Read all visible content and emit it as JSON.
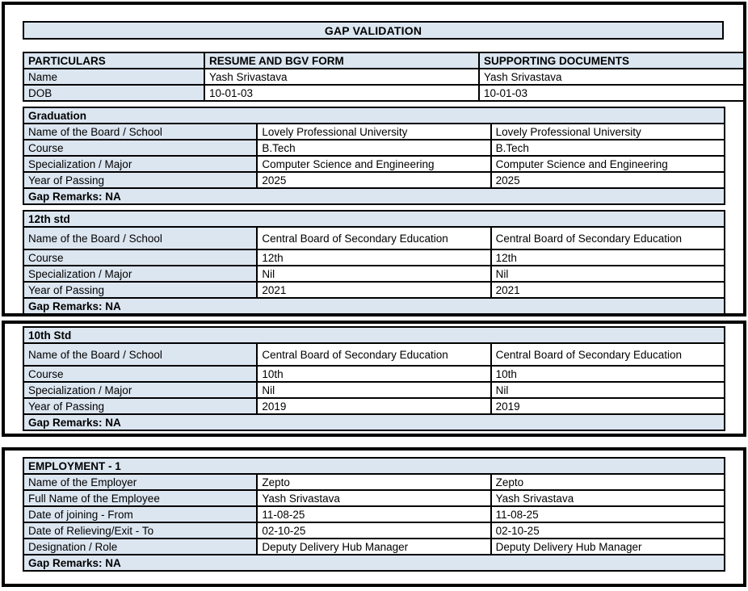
{
  "title_bar": {
    "text": "GAP VALIDATION"
  },
  "colors": {
    "accent_bg": "#dce6f1",
    "border": "#000000",
    "text": "#000000"
  },
  "particulars_table": {
    "headers": [
      "PARTICULARS",
      "RESUME AND BGV FORM",
      "SUPPORTING DOCUMENTS"
    ],
    "rows": [
      {
        "label": "Name",
        "resume": "Yash Srivastava",
        "supporting": "Yash Srivastava"
      },
      {
        "label": "DOB",
        "resume": "10-01-03",
        "supporting": "10-01-03"
      }
    ]
  },
  "sections": [
    {
      "title": "Graduation",
      "rows": [
        {
          "label": "Name of the Board / School",
          "resume": "Lovely Professional University",
          "supporting": "Lovely Professional University"
        },
        {
          "label": "Course",
          "resume": "B.Tech",
          "supporting": "B.Tech"
        },
        {
          "label": "Specialization / Major",
          "resume": "Computer Science and Engineering",
          "supporting": "Computer Science and Engineering"
        },
        {
          "label": "Year of Passing",
          "resume": "2025",
          "supporting": "2025"
        }
      ],
      "gap_remarks": "Gap Remarks: NA"
    },
    {
      "title": "12th std",
      "rows": [
        {
          "label": "Name of the Board / School",
          "resume": "Central Board of Secondary Education",
          "supporting": "Central Board of Secondary Education"
        },
        {
          "label": "Course",
          "resume": "12th",
          "supporting": "12th"
        },
        {
          "label": "Specialization / Major",
          "resume": "Nil",
          "supporting": "Nil"
        },
        {
          "label": "Year of Passing",
          "resume": "2021",
          "supporting": "2021"
        }
      ],
      "gap_remarks": "Gap Remarks: NA"
    },
    {
      "title": "10th Std",
      "rows": [
        {
          "label": "Name of the Board / School",
          "resume": "Central Board of Secondary Education",
          "supporting": "Central Board of Secondary Education"
        },
        {
          "label": "Course",
          "resume": "10th",
          "supporting": "10th"
        },
        {
          "label": "Specialization / Major",
          "resume": "Nil",
          "supporting": "Nil"
        },
        {
          "label": "Year of Passing",
          "resume": "2019",
          "supporting": "2019"
        }
      ],
      "gap_remarks": "Gap Remarks: NA"
    },
    {
      "title": "EMPLOYMENT - 1",
      "rows": [
        {
          "label": "Name of the Employer",
          "resume": "Zepto",
          "supporting": "Zepto"
        },
        {
          "label": "Full Name of the Employee",
          "resume": "Yash Srivastava",
          "supporting": "Yash Srivastava"
        },
        {
          "label": "Date of joining - From",
          "resume": "11-08-25",
          "supporting": "11-08-25"
        },
        {
          "label": "Date of Relieving/Exit - To",
          "resume": "02-10-25",
          "supporting": "02-10-25"
        },
        {
          "label": "Designation / Role",
          "resume": "Deputy Delivery Hub Manager",
          "supporting": "Deputy Delivery Hub Manager"
        }
      ],
      "gap_remarks": "Gap Remarks: NA"
    }
  ]
}
